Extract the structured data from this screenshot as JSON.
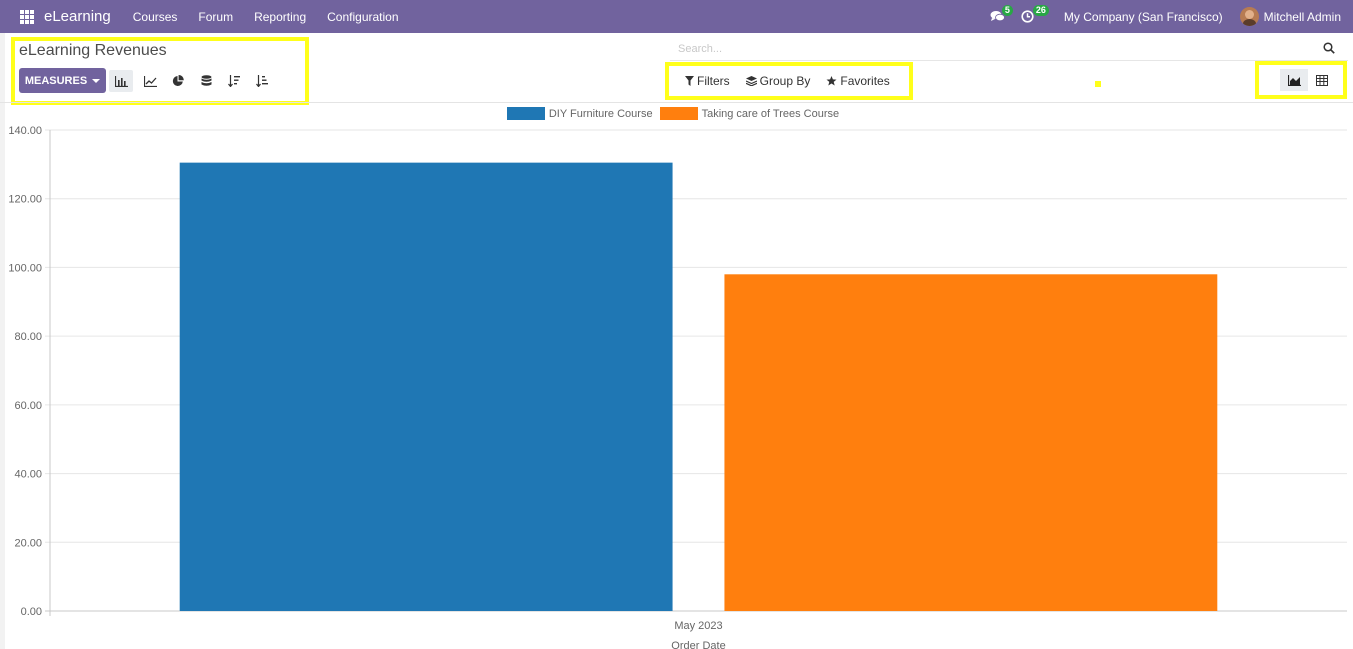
{
  "navbar": {
    "brand": "eLearning",
    "menu": [
      "Courses",
      "Forum",
      "Reporting",
      "Configuration"
    ],
    "messages_count": "5",
    "activities_count": "26",
    "company": "My Company (San Francisco)",
    "user": "Mitchell Admin",
    "background_color": "#71639e"
  },
  "control_panel": {
    "title": "eLearning Revenues",
    "measures_label": "MEASURES",
    "search_placeholder": "Search...",
    "filters_label": "Filters",
    "group_by_label": "Group By",
    "favorites_label": "Favorites",
    "highlight_color": "#ffff1a",
    "tool_icons": [
      "bar-chart-icon",
      "line-chart-icon",
      "pie-chart-icon",
      "stacked-icon",
      "sort-descending-icon",
      "sort-ascending-icon"
    ],
    "view_icons": [
      "graph-view-icon",
      "pivot-view-icon"
    ]
  },
  "chart_data": {
    "type": "bar",
    "categories": [
      "May 2023"
    ],
    "series": [
      {
        "name": "DIY Furniture Course",
        "values": [
          130.5
        ],
        "color": "#1f77b4"
      },
      {
        "name": "Taking care of Trees Course",
        "values": [
          98.0
        ],
        "color": "#ff7f0e"
      }
    ],
    "xlabel": "Order Date",
    "ylabel": "",
    "ylim": [
      0,
      140
    ],
    "y_ticks": [
      "0.00",
      "20.00",
      "40.00",
      "60.00",
      "80.00",
      "100.00",
      "120.00",
      "140.00"
    ],
    "grid": true,
    "legend": "top-center"
  }
}
